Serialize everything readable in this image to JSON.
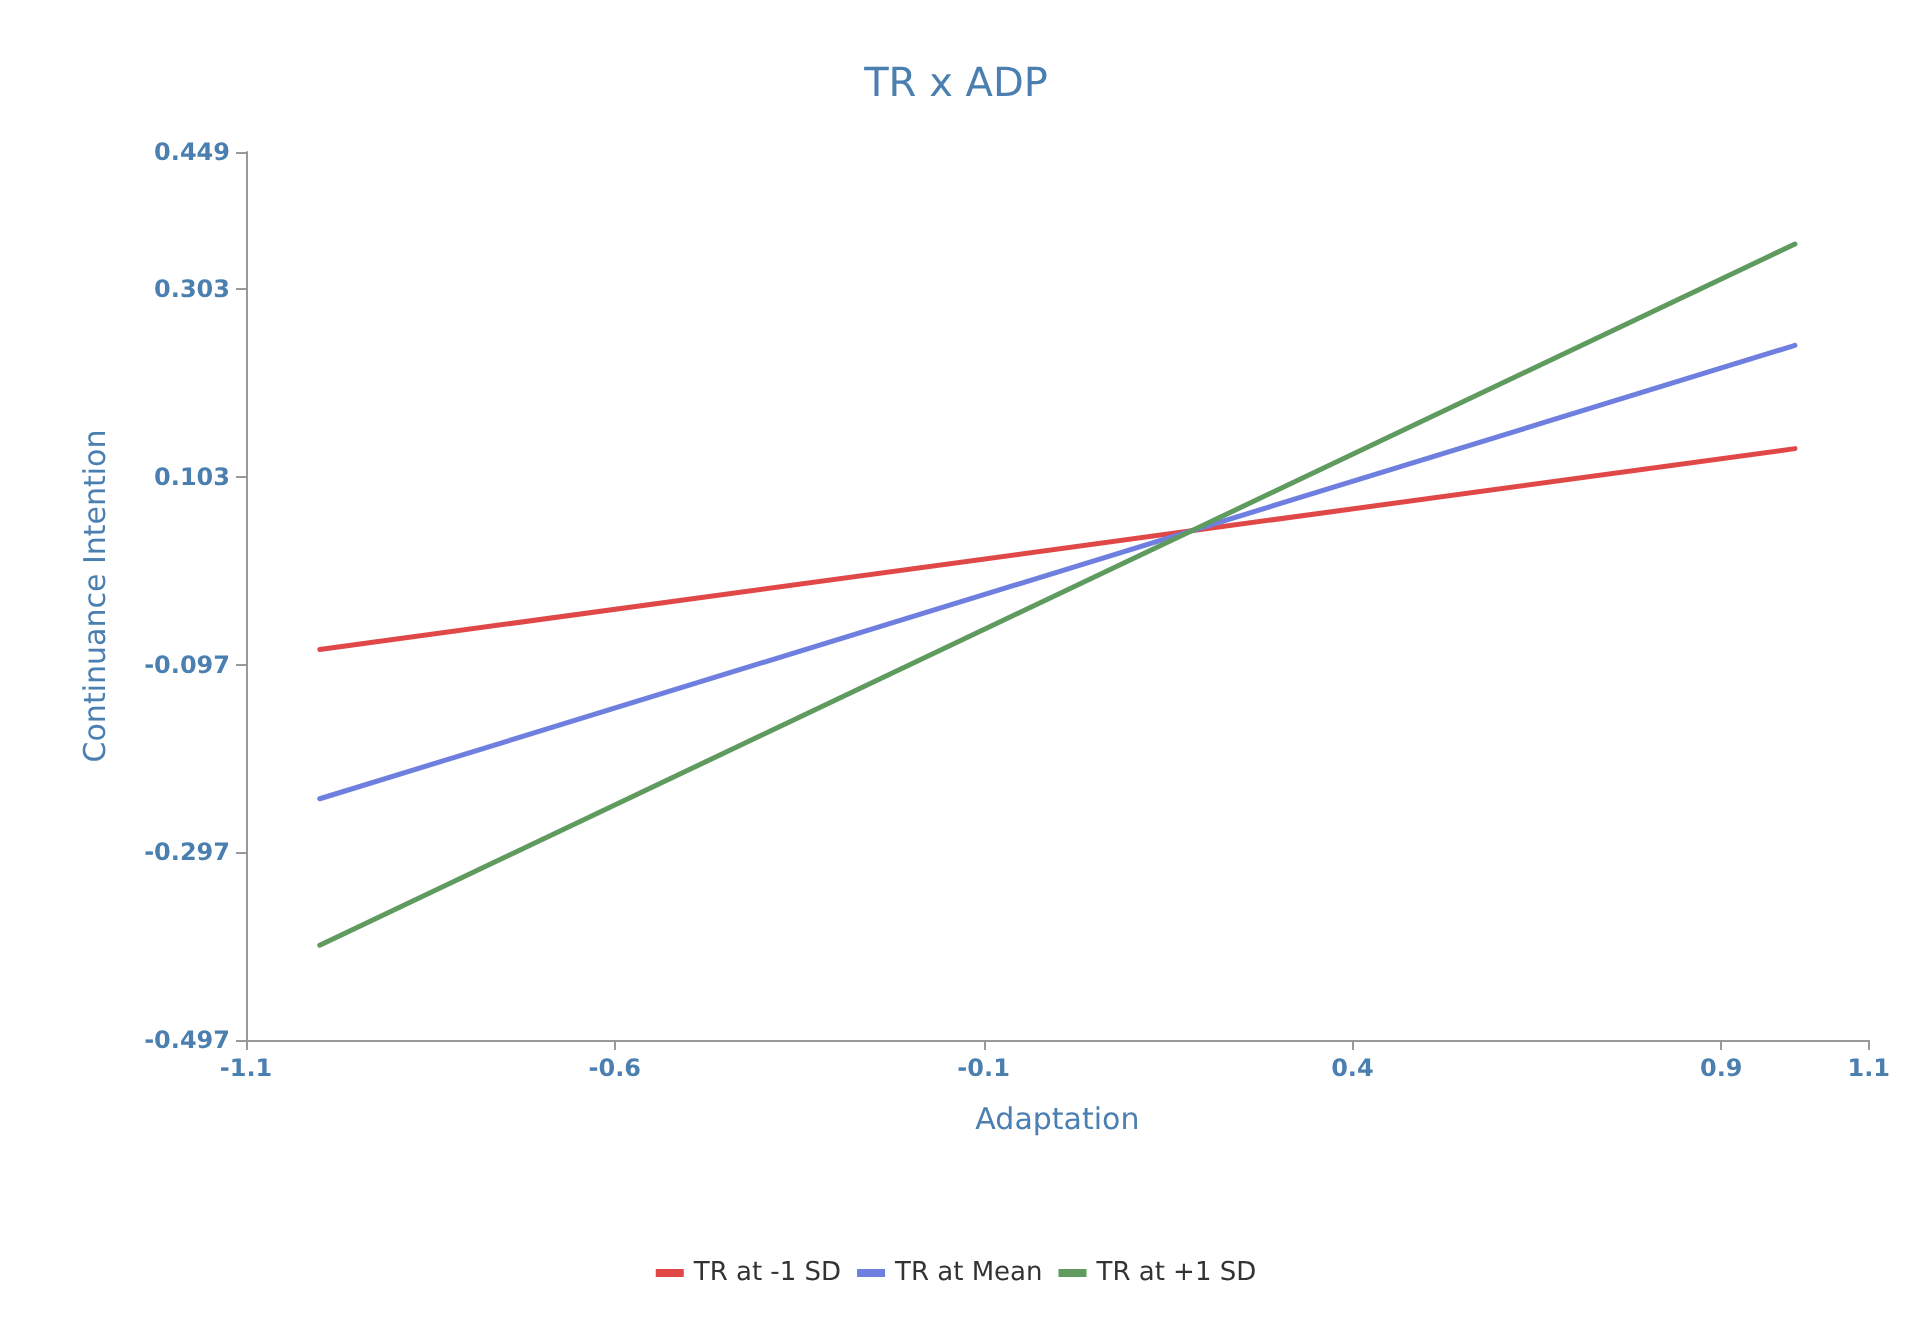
{
  "chart_data": {
    "type": "line",
    "title": "TR x ADP",
    "xlabel": "Adaptation",
    "ylabel": "Continuance Intention",
    "x": [
      -1,
      1
    ],
    "series": [
      {
        "name": "TR at -1 SD",
        "color": "#e04848",
        "values": [
          -0.081,
          0.133
        ]
      },
      {
        "name": "TR at Mean",
        "color": "#6f7fe0",
        "values": [
          -0.24,
          0.243
        ]
      },
      {
        "name": "TR at +1 SD",
        "color": "#5f9a5f",
        "values": [
          -0.396,
          0.351
        ]
      }
    ],
    "xlim": [
      -1.1,
      1.1
    ],
    "xticks": [
      -1.1,
      -0.6,
      -0.1,
      0.4,
      0.9,
      1.1
    ],
    "ylim": [
      -0.497,
      0.449
    ],
    "yticks": [
      -0.497,
      -0.297,
      -0.097,
      0.103,
      0.303,
      0.449
    ],
    "grid": false,
    "legend": "bottom",
    "marker": "none",
    "line_style": "solid"
  }
}
